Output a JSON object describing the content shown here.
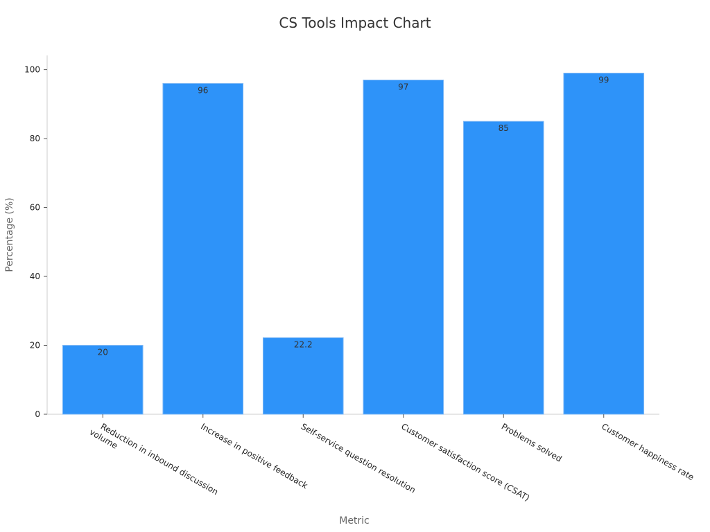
{
  "chart_data": {
    "type": "bar",
    "title": "CS Tools Impact Chart",
    "xlabel": "Metric",
    "ylabel": "Percentage (%)",
    "categories": [
      "Reduction in inbound discussion volume",
      "Increase in positive feedback",
      "Self-service question resolution",
      "Customer satisfaction score (CSAT)",
      "Problems solved",
      "Customer happiness rate"
    ],
    "values": [
      20,
      96,
      22.2,
      97,
      85,
      99
    ],
    "value_labels": [
      "20",
      "96",
      "22.2",
      "97",
      "85",
      "99"
    ],
    "ylim": [
      0,
      104
    ],
    "yticks": [
      0,
      20,
      40,
      60,
      80,
      100
    ],
    "ytick_labels": [
      "0",
      "20",
      "40",
      "60",
      "80",
      "100"
    ],
    "grid": false,
    "legend": "none",
    "bar_color": "#2e93f9"
  }
}
